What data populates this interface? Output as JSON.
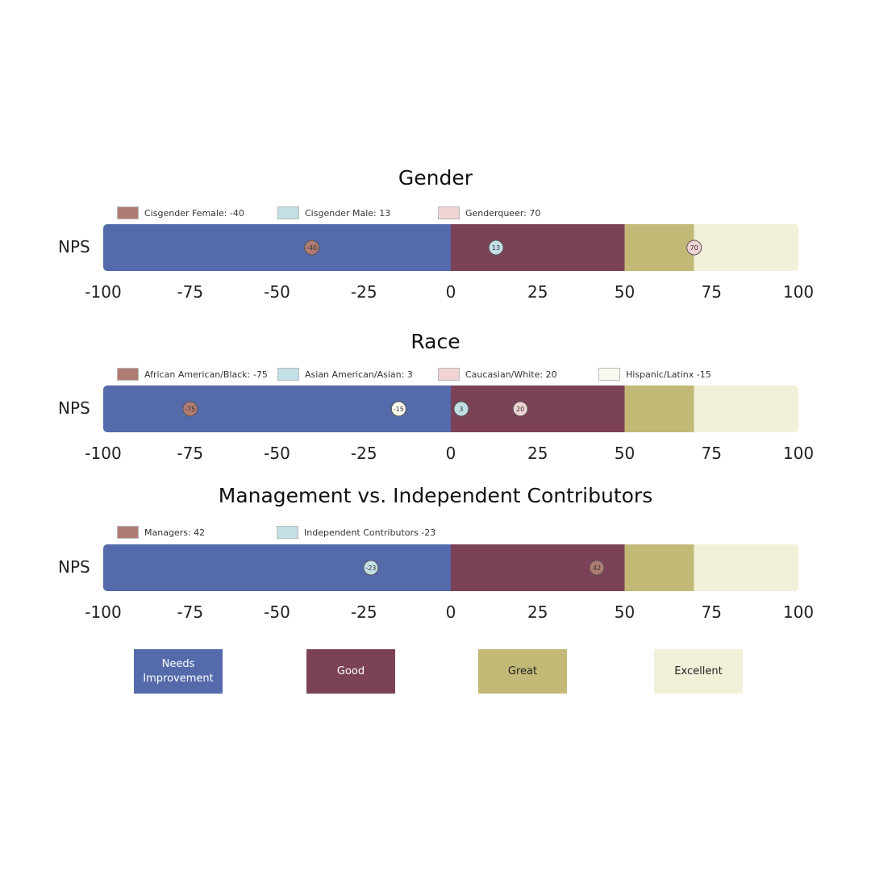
{
  "chart_data": {
    "type": "bar",
    "xlim": [
      -100,
      100
    ],
    "xticks": [
      -100,
      -75,
      -50,
      -25,
      0,
      25,
      50,
      75,
      100
    ],
    "tick_labels": [
      "-100",
      "-75",
      "-50",
      "-25",
      "0",
      "25",
      "50",
      "75",
      "100"
    ],
    "row_label": "NPS",
    "bands": [
      {
        "name": "Needs Improvement",
        "from": -100,
        "to": 0,
        "color": "#546AAB",
        "text_color": "#ffffff"
      },
      {
        "name": "Good",
        "from": 0,
        "to": 50,
        "color": "#7B4257",
        "text_color": "#ffffff"
      },
      {
        "name": "Great",
        "from": 50,
        "to": 70,
        "color": "#C3B977",
        "text_color": "#222222"
      },
      {
        "name": "Excellent",
        "from": 70,
        "to": 100,
        "color": "#F2F0D8",
        "text_color": "#222222"
      }
    ],
    "key": [
      {
        "line1": "Needs",
        "line2": "Improvement"
      },
      {
        "line1": "Good",
        "line2": ""
      },
      {
        "line1": "Great",
        "line2": ""
      },
      {
        "line1": "Excellent",
        "line2": ""
      }
    ],
    "panels": [
      {
        "title": "Gender",
        "series": [
          {
            "name": "Cisgender Female",
            "legend": "Cisgender Female: -40",
            "value": -40,
            "label": "-40",
            "color": "#B07B73"
          },
          {
            "name": "Cisgender Male",
            "legend": "Cisgender Male: 13",
            "value": 13,
            "label": "13",
            "color": "#C2DFE6"
          },
          {
            "name": "Genderqueer",
            "legend": "Genderqueer: 70",
            "value": 70,
            "label": "70",
            "color": "#F0D3D5"
          }
        ]
      },
      {
        "title": "Race",
        "series": [
          {
            "name": "African American/Black",
            "legend": "African American/Black: -75",
            "value": -75,
            "label": "-75",
            "color": "#B07B73"
          },
          {
            "name": "Asian American/Asian",
            "legend": "Asian American/Asian: 3",
            "value": 3,
            "label": "3",
            "color": "#C2DFE6"
          },
          {
            "name": "Caucasian/White",
            "legend": "Caucasian/White:  20",
            "value": 20,
            "label": "20",
            "color": "#F0D3D5"
          },
          {
            "name": "Hispanic/Latinx",
            "legend": "Hispanic/Latinx -15",
            "value": -15,
            "label": "-15",
            "color": "#FAFAF1"
          }
        ]
      },
      {
        "title": "Management vs. Independent Contributors",
        "series": [
          {
            "name": "Managers",
            "legend": "Managers: 42",
            "value": 42,
            "label": "42",
            "color": "#B07B73"
          },
          {
            "name": "Independent Contributors",
            "legend": "Independent Contributors -23",
            "value": -23,
            "label": "-23",
            "color": "#C2DFE6"
          }
        ]
      }
    ]
  }
}
